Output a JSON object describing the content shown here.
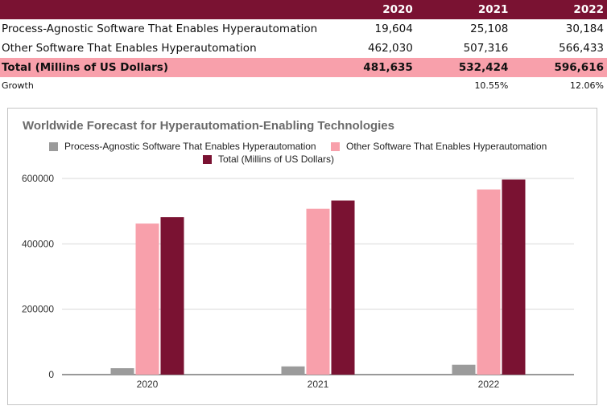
{
  "table": {
    "years": [
      "2020",
      "2021",
      "2022"
    ],
    "rows": [
      {
        "label": "Process-Agnostic Software That Enables Hyperautomation",
        "values": [
          "19,604",
          "25,108",
          "30,184"
        ]
      },
      {
        "label": "Other Software That Enables Hyperautomation",
        "values": [
          "462,030",
          "507,316",
          "566,433"
        ]
      }
    ],
    "total": {
      "label": "Total (Millins of US Dollars)",
      "values": [
        "481,635",
        "532,424",
        "596,616"
      ]
    },
    "growth": {
      "label": "Growth",
      "values": [
        "",
        "10.55%",
        "12.06%"
      ]
    }
  },
  "colors": {
    "header_bg": "#7a1232",
    "total_bg": "#f8a0ab",
    "series_gray": "#9b9b9b",
    "series_pink": "#f8a0ab",
    "series_maroon": "#7a1232"
  },
  "chart_data": {
    "type": "bar",
    "title": "Worldwide Forecast for Hyperautomation-Enabling Technologies",
    "categories": [
      "2020",
      "2021",
      "2022"
    ],
    "series": [
      {
        "name": "Process-Agnostic Software That Enables Hyperautomation",
        "values": [
          19604,
          25108,
          30184
        ],
        "color": "#9b9b9b"
      },
      {
        "name": "Other Software That Enables Hyperautomation",
        "values": [
          462030,
          507316,
          566433
        ],
        "color": "#f8a0ab"
      },
      {
        "name": "Total (Millins of US Dollars)",
        "values": [
          481635,
          532424,
          596616
        ],
        "color": "#7a1232"
      }
    ],
    "yticks": [
      0,
      200000,
      400000,
      600000
    ],
    "ylim": [
      0,
      600000
    ],
    "xlabel": "",
    "ylabel": "",
    "grid": true,
    "legend": "top"
  }
}
